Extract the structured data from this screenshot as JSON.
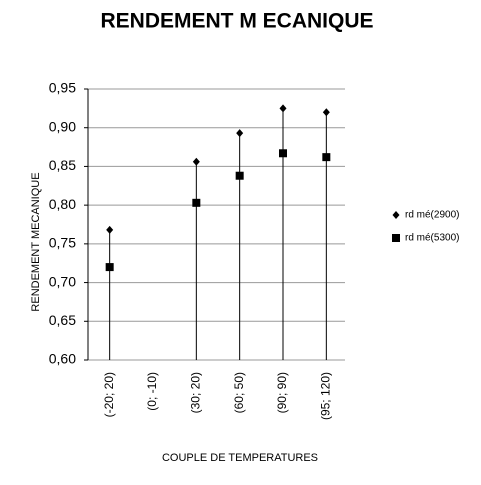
{
  "chart_data": {
    "type": "scatter",
    "title": "RENDEMENT M ECANIQUE",
    "x_label": "COUPLE DE TEMPERATURES",
    "y_label": "RENDEMENT MECANIQUE",
    "categories": [
      "(-20; 20)",
      "(0; -10)",
      "(30; 20)",
      "(60; 50)",
      "(90; 90)",
      "(95; 120)"
    ],
    "series": [
      {
        "name": "rd mé(2900)",
        "color": "#000000",
        "marker": "diamond",
        "values": [
          0.768,
          null,
          0.856,
          0.893,
          0.925,
          0.92
        ]
      },
      {
        "name": "rd mé(5300)",
        "color": "#000000",
        "marker": "square",
        "values": [
          0.72,
          null,
          0.803,
          0.838,
          0.867,
          0.862
        ]
      }
    ],
    "ylim": [
      0.6,
      0.95
    ],
    "yticks": [
      {
        "value": 0.6,
        "label": "0,60"
      },
      {
        "value": 0.65,
        "label": "0,65"
      },
      {
        "value": 0.7,
        "label": "0,70"
      },
      {
        "value": 0.75,
        "label": "0,75"
      },
      {
        "value": 0.8,
        "label": "0,80"
      },
      {
        "value": 0.85,
        "label": "0,85"
      },
      {
        "value": 0.9,
        "label": "0,90"
      },
      {
        "value": 0.95,
        "label": "0,95"
      }
    ],
    "grid": true,
    "drop_lines": true,
    "legend": "right"
  }
}
